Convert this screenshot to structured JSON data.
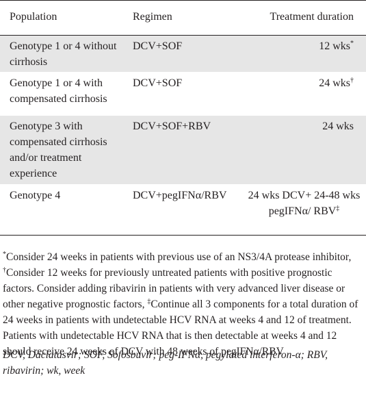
{
  "table": {
    "headers": [
      "Population",
      "Regimen",
      "Treatment duration"
    ],
    "rows": [
      {
        "population": "Genotype 1 or 4 without cirrhosis",
        "regimen": "DCV+SOF",
        "duration": "12 wks",
        "duration_mark": "*",
        "shaded": true
      },
      {
        "population": "Genotype 1 or 4 with compensated cirrhosis",
        "regimen": "DCV+SOF",
        "duration": "24 wks",
        "duration_mark": "†",
        "shaded": false
      },
      {
        "population": "Genotype 3 with compensated cirrhosis and/or treatment experience",
        "regimen": "DCV+SOF+RBV",
        "duration": "24 wks",
        "duration_mark": "",
        "shaded": true
      },
      {
        "population": "Genotype 4",
        "regimen": "DCV+pegIFNα/RBV",
        "duration": "24 wks DCV+ 24-48 wks pegIFNα/ RBV",
        "duration_mark": "‡",
        "shaded": false
      }
    ]
  },
  "footnotes": {
    "star_mark": "*",
    "star_text": "Consider 24 weeks in patients with previous use of an NS3/4A protease inhibitor, ",
    "dagger_mark": "†",
    "dagger_text": "Consider 12 weeks for previously untreated patients with positive prognostic factors. Consider adding ribavirin in patients with very advanced liver disease or other negative prognostic factors, ",
    "ddagger_mark": "‡",
    "ddagger_text": "Continue all 3 components for a total duration of 24 weeks in patients with undetectable HCV RNA at weeks 4 and 12 of treatment. Patients with undetectable HCV RNA that is then detectable at weeks 4 and 12 should receive 24 weeks of DCV with 48 weeks of pegIFNα/RBV"
  },
  "abbreviations": "DCV, Daclatasvir; SOF, Sofosbuvir; peg-IFNα, pegylated interferon-α; RBV, ribavirin; wk, week"
}
